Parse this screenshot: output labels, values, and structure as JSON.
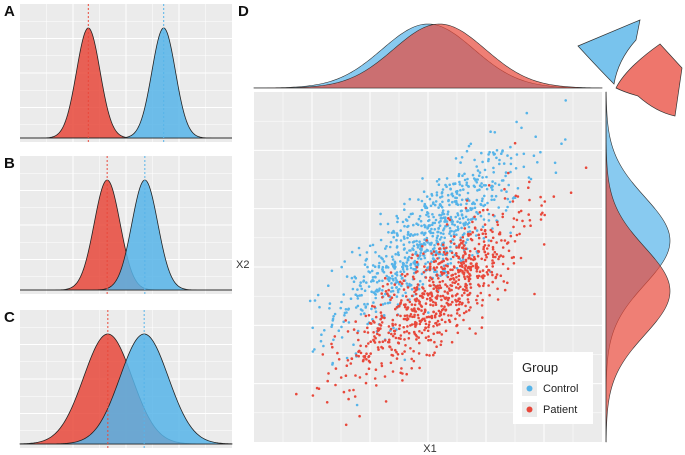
{
  "colors": {
    "control": "#56B4E9",
    "patient": "#E8483B",
    "panel_bg": "#EBEBEB",
    "grid": "#FFFFFF",
    "overlap": "#9A4F6E"
  },
  "chart_data": [
    {
      "panel": "A",
      "type": "area",
      "description_series": [
        "Patient",
        "Control"
      ],
      "series": [
        {
          "name": "Patient",
          "mean": -1.6,
          "sd": 0.5
        },
        {
          "name": "Control",
          "mean": 1.6,
          "sd": 0.5
        }
      ],
      "xlim": [
        -4.5,
        4.5
      ],
      "vlines": [
        -1.6,
        1.6
      ]
    },
    {
      "panel": "B",
      "type": "area",
      "series": [
        {
          "name": "Patient",
          "mean": -0.8,
          "sd": 0.55
        },
        {
          "name": "Control",
          "mean": 0.8,
          "sd": 0.55
        }
      ],
      "xlim": [
        -4.5,
        4.5
      ],
      "vlines": [
        -0.8,
        0.8
      ]
    },
    {
      "panel": "C",
      "type": "area",
      "series": [
        {
          "name": "Patient",
          "mean": -0.6,
          "sd": 0.8
        },
        {
          "name": "Control",
          "mean": 0.6,
          "sd": 0.8
        }
      ],
      "xlim": [
        -3.5,
        3.5
      ],
      "vlines": [
        -0.6,
        0.6
      ]
    },
    {
      "panel": "D",
      "type": "scatter",
      "xlabel": "X1",
      "ylabel": "X2",
      "legend_title": "Group",
      "legend_position": "bottom-right",
      "series": [
        {
          "name": "Control",
          "x_mean": 0.0,
          "y_mean": 0.6,
          "n": 800
        },
        {
          "name": "Patient",
          "x_mean": 0.25,
          "y_mean": -0.55,
          "n": 800
        }
      ],
      "correlation": 0.8,
      "xlim": [
        -3.8,
        3.8
      ],
      "ylim": [
        -4.0,
        4.0
      ],
      "marginal_x": [
        {
          "name": "Control",
          "mean": 0.0,
          "sd": 1.0
        },
        {
          "name": "Patient",
          "mean": 0.25,
          "sd": 1.0
        }
      ],
      "marginal_y": [
        {
          "name": "Control",
          "mean": 0.6,
          "sd": 1.0
        },
        {
          "name": "Patient",
          "mean": -0.55,
          "sd": 1.0
        }
      ]
    }
  ]
}
